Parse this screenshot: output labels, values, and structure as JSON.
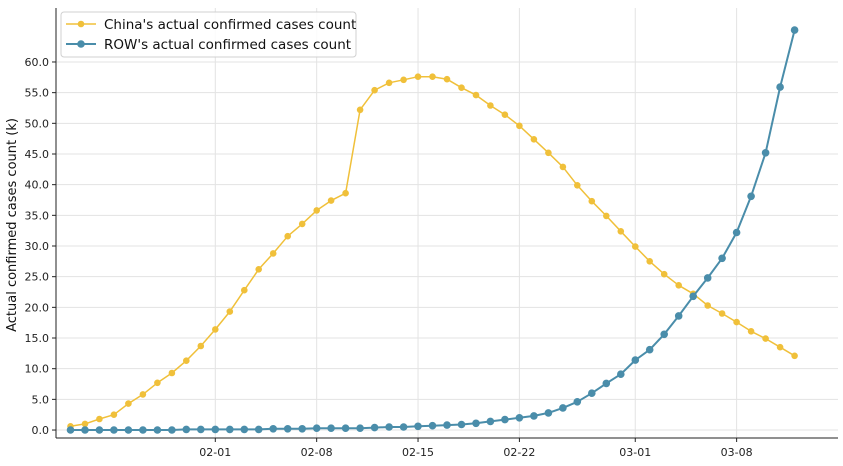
{
  "chart_data": {
    "type": "line",
    "ylabel": "Actual confirmed cases count (k)",
    "xlabel": "",
    "x_start": "2020-01-22",
    "x_ticks": [
      "02-01",
      "02-08",
      "02-15",
      "02-22",
      "03-01",
      "03-08"
    ],
    "x_tick_dates": [
      "2020-02-01",
      "2020-02-08",
      "2020-02-15",
      "2020-02-22",
      "2020-03-01",
      "2020-03-08"
    ],
    "x_range": [
      "2020-01-21",
      "2020-03-15"
    ],
    "ylim": [
      -1.3,
      68.8
    ],
    "y_ticks": [
      "0.0",
      "5.0",
      "10.0",
      "15.0",
      "20.0",
      "25.0",
      "30.0",
      "35.0",
      "40.0",
      "45.0",
      "50.0",
      "55.0",
      "60.0"
    ],
    "y_tick_values": [
      0,
      5,
      10,
      15,
      20,
      25,
      30,
      35,
      40,
      45,
      50,
      55,
      60
    ],
    "grid": true,
    "legend_position": "top-left",
    "series": [
      {
        "name": "China's actual confirmed cases count",
        "color": "#f0c03a",
        "values": [
          0.6,
          1.0,
          1.8,
          2.5,
          4.3,
          5.8,
          7.7,
          9.3,
          11.3,
          13.7,
          16.4,
          19.3,
          22.8,
          26.2,
          28.8,
          31.6,
          33.6,
          35.8,
          37.4,
          38.6,
          52.2,
          55.4,
          56.6,
          57.1,
          57.6,
          57.6,
          57.2,
          55.8,
          54.6,
          52.9,
          51.4,
          49.6,
          47.4,
          45.2,
          42.9,
          39.9,
          37.3,
          34.9,
          32.4,
          29.9,
          27.5,
          25.4,
          23.6,
          22.2,
          20.3,
          19.0,
          17.6,
          16.1,
          14.9,
          13.5,
          12.1
        ]
      },
      {
        "name": "ROW's actual confirmed cases count",
        "color": "#4a8daa",
        "values": [
          0.0,
          0.0,
          0.0,
          0.0,
          0.0,
          0.0,
          0.0,
          0.0,
          0.1,
          0.1,
          0.1,
          0.1,
          0.1,
          0.1,
          0.2,
          0.2,
          0.2,
          0.3,
          0.3,
          0.3,
          0.3,
          0.4,
          0.5,
          0.5,
          0.6,
          0.7,
          0.8,
          0.9,
          1.1,
          1.4,
          1.7,
          2.0,
          2.3,
          2.8,
          3.6,
          4.6,
          6.0,
          7.6,
          9.1,
          11.4,
          13.1,
          15.6,
          18.6,
          21.8,
          24.8,
          28.0,
          32.2,
          38.1,
          45.2,
          55.9,
          65.2
        ]
      }
    ]
  }
}
